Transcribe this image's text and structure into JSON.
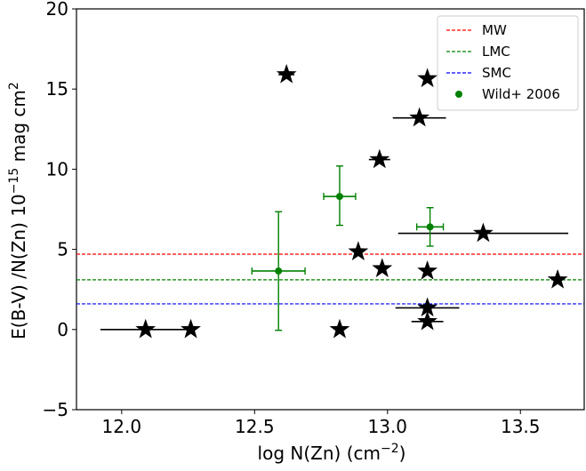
{
  "chart_data": {
    "type": "scatter",
    "xlabel": "log N(Zn) (cm",
    "xlabel_sup": "−2",
    "xlabel_end": ")",
    "ylabel": "E(B-V) /N(Zn) 10",
    "ylabel_sup": "−15",
    "ylabel_mid": " mag cm",
    "ylabel_sup2": "2",
    "xlim": [
      11.83,
      13.74
    ],
    "ylim": [
      -5,
      20
    ],
    "xticks": [
      12.0,
      12.5,
      13.0,
      13.5
    ],
    "xtick_labels": [
      "12.0",
      "12.5",
      "13.0",
      "13.5"
    ],
    "yticks": [
      -5,
      0,
      5,
      10,
      15,
      20
    ],
    "ytick_labels": [
      "−5",
      "0",
      "5",
      "10",
      "15",
      "20"
    ],
    "grid": false,
    "legend_position": "top-right",
    "reference_lines": [
      {
        "name": "MW",
        "y": 4.7,
        "color": "#ff0000"
      },
      {
        "name": "LMC",
        "y": 3.1,
        "color": "#008000"
      },
      {
        "name": "SMC",
        "y": 1.6,
        "color": "#0000ff"
      }
    ],
    "series": [
      {
        "marker": "star",
        "color": "#000000",
        "points": [
          {
            "x": 12.09,
            "y": 0.0,
            "xerr": [
              0.17,
              0.17
            ]
          },
          {
            "x": 12.26,
            "y": 0.0,
            "xerr": [
              0.0,
              0.0
            ]
          },
          {
            "x": 12.62,
            "y": 15.9,
            "xerr": [
              0.03,
              0.03
            ]
          },
          {
            "x": 12.82,
            "y": 0.0,
            "xerr": [
              0.0,
              0.0
            ]
          },
          {
            "x": 12.89,
            "y": 4.85,
            "xerr": [
              0.0,
              0.0
            ]
          },
          {
            "x": 12.97,
            "y": 10.6,
            "xerr": [
              0.04,
              0.04
            ]
          },
          {
            "x": 12.98,
            "y": 3.8,
            "xerr": [
              0.0,
              0.0
            ]
          },
          {
            "x": 13.12,
            "y": 13.2,
            "xerr": [
              0.1,
              0.1
            ]
          },
          {
            "x": 13.15,
            "y": 15.65,
            "xerr": [
              0.0,
              0.0
            ]
          },
          {
            "x": 13.15,
            "y": 3.65,
            "xerr": [
              0.0,
              0.0
            ]
          },
          {
            "x": 13.15,
            "y": 1.35,
            "xerr": [
              0.12,
              0.12
            ]
          },
          {
            "x": 13.15,
            "y": 0.5,
            "xerr": [
              0.06,
              0.06
            ]
          },
          {
            "x": 13.36,
            "y": 6.0,
            "xerr": [
              0.32,
              0.32
            ]
          },
          {
            "x": 13.64,
            "y": 3.1,
            "xerr": [
              0.0,
              0.0
            ]
          }
        ]
      },
      {
        "name": "Wild+ 2006",
        "marker": "circle",
        "color": "#008000",
        "points": [
          {
            "x": 12.59,
            "y": 3.65,
            "xerr": [
              0.1,
              0.1
            ],
            "yerr": [
              3.7,
              3.7
            ]
          },
          {
            "x": 12.82,
            "y": 8.3,
            "xerr": [
              0.06,
              0.06
            ],
            "yerr": [
              1.8,
              1.9
            ]
          },
          {
            "x": 13.16,
            "y": 6.4,
            "xerr": [
              0.05,
              0.05
            ],
            "yerr": [
              1.2,
              1.2
            ]
          }
        ]
      }
    ],
    "legend": [
      "MW",
      "LMC",
      "SMC",
      "Wild+ 2006"
    ]
  }
}
